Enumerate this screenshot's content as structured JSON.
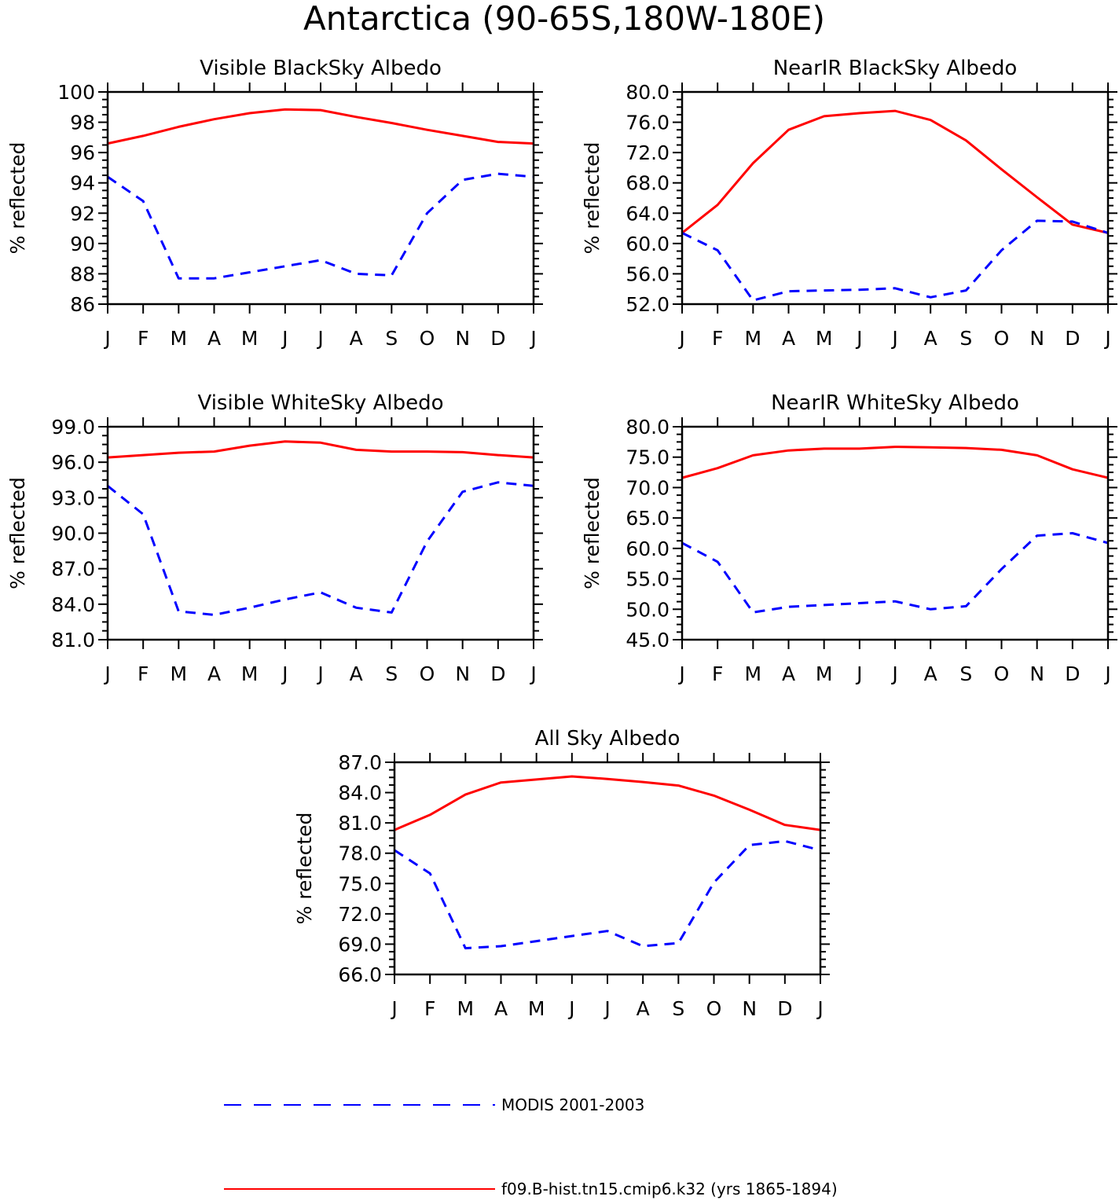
{
  "title": "Antarctica (90-65S,180W-180E)",
  "legend": {
    "modis_label": "MODIS 2001-2003",
    "model_label": "f09.B-hist.tn15.cmip6.k32 (yrs 1865-1894)",
    "modis_color": "#0000ff",
    "model_color": "#ff0000"
  },
  "chart_data": [
    {
      "type": "line",
      "title": "Visible BlackSky Albedo",
      "ylabel": "% reflected",
      "x": [
        "J",
        "F",
        "M",
        "A",
        "M",
        "J",
        "J",
        "A",
        "S",
        "O",
        "N",
        "D",
        "J"
      ],
      "ylim": [
        86,
        100
      ],
      "yticks": [
        "86",
        "88",
        "90",
        "92",
        "94",
        "96",
        "98",
        "100"
      ],
      "series": [
        {
          "name": "f09.B-hist.tn15.cmip6.k32 (yrs 1865-1894)",
          "color": "#ff0000",
          "dash": false,
          "values": [
            96.6,
            97.1,
            97.7,
            98.2,
            98.6,
            98.85,
            98.8,
            98.35,
            97.95,
            97.5,
            97.1,
            96.7,
            96.6
          ]
        },
        {
          "name": "MODIS 2001-2003",
          "color": "#0000ff",
          "dash": true,
          "values": [
            94.4,
            92.8,
            87.7,
            87.7,
            88.1,
            88.5,
            88.9,
            88.0,
            87.9,
            92.0,
            94.2,
            94.6,
            94.4
          ]
        }
      ]
    },
    {
      "type": "line",
      "title": "NearIR BlackSky Albedo",
      "ylabel": "% reflected",
      "x": [
        "J",
        "F",
        "M",
        "A",
        "M",
        "J",
        "J",
        "A",
        "S",
        "O",
        "N",
        "D",
        "J"
      ],
      "ylim": [
        52,
        80
      ],
      "yticks": [
        "52.0",
        "56.0",
        "60.0",
        "64.0",
        "68.0",
        "72.0",
        "76.0",
        "80.0"
      ],
      "series": [
        {
          "name": "f09.B-hist.tn15.cmip6.k32 (yrs 1865-1894)",
          "color": "#ff0000",
          "dash": false,
          "values": [
            61.4,
            65.1,
            70.6,
            75.0,
            76.8,
            77.2,
            77.5,
            76.3,
            73.6,
            69.8,
            66.1,
            62.5,
            61.4
          ]
        },
        {
          "name": "MODIS 2001-2003",
          "color": "#0000ff",
          "dash": true,
          "values": [
            61.4,
            59.1,
            52.5,
            53.7,
            53.8,
            53.9,
            54.1,
            52.9,
            53.8,
            59.1,
            63.0,
            62.9,
            61.4
          ]
        }
      ]
    },
    {
      "type": "line",
      "title": "Visible WhiteSky Albedo",
      "ylabel": "% reflected",
      "x": [
        "J",
        "F",
        "M",
        "A",
        "M",
        "J",
        "J",
        "A",
        "S",
        "O",
        "N",
        "D",
        "J"
      ],
      "ylim": [
        81,
        99
      ],
      "yticks": [
        "81.0",
        "84.0",
        "87.0",
        "90.0",
        "93.0",
        "96.0",
        "99.0"
      ],
      "series": [
        {
          "name": "f09.B-hist.tn15.cmip6.k32 (yrs 1865-1894)",
          "color": "#ff0000",
          "dash": false,
          "values": [
            96.4,
            96.6,
            96.8,
            96.9,
            97.4,
            97.75,
            97.65,
            97.05,
            96.9,
            96.9,
            96.85,
            96.6,
            96.4
          ]
        },
        {
          "name": "MODIS 2001-2003",
          "color": "#0000ff",
          "dash": true,
          "values": [
            94.0,
            91.6,
            83.4,
            83.1,
            83.7,
            84.4,
            85.0,
            83.7,
            83.3,
            89.3,
            93.5,
            94.3,
            94.0
          ]
        }
      ]
    },
    {
      "type": "line",
      "title": "NearIR WhiteSky Albedo",
      "ylabel": "% reflected",
      "x": [
        "J",
        "F",
        "M",
        "A",
        "M",
        "J",
        "J",
        "A",
        "S",
        "O",
        "N",
        "D",
        "J"
      ],
      "ylim": [
        45,
        80
      ],
      "yticks": [
        "45.0",
        "50.0",
        "55.0",
        "60.0",
        "65.0",
        "70.0",
        "75.0",
        "80.0"
      ],
      "series": [
        {
          "name": "f09.B-hist.tn15.cmip6.k32 (yrs 1865-1894)",
          "color": "#ff0000",
          "dash": false,
          "values": [
            71.6,
            73.2,
            75.3,
            76.1,
            76.4,
            76.4,
            76.7,
            76.6,
            76.5,
            76.2,
            75.3,
            73.0,
            71.6
          ]
        },
        {
          "name": "MODIS 2001-2003",
          "color": "#0000ff",
          "dash": true,
          "values": [
            60.9,
            57.8,
            49.5,
            50.4,
            50.7,
            51.0,
            51.3,
            50.0,
            50.5,
            56.6,
            62.1,
            62.5,
            60.9
          ]
        }
      ]
    },
    {
      "type": "line",
      "title": "All Sky Albedo",
      "ylabel": "% reflected",
      "x": [
        "J",
        "F",
        "M",
        "A",
        "M",
        "J",
        "J",
        "A",
        "S",
        "O",
        "N",
        "D",
        "J"
      ],
      "ylim": [
        66,
        87
      ],
      "yticks": [
        "66.0",
        "69.0",
        "72.0",
        "75.0",
        "78.0",
        "81.0",
        "84.0",
        "87.0"
      ],
      "series": [
        {
          "name": "f09.B-hist.tn15.cmip6.k32 (yrs 1865-1894)",
          "color": "#ff0000",
          "dash": false,
          "values": [
            80.3,
            81.8,
            83.8,
            85.0,
            85.3,
            85.6,
            85.35,
            85.05,
            84.7,
            83.7,
            82.3,
            80.8,
            80.3
          ]
        },
        {
          "name": "MODIS 2001-2003",
          "color": "#0000ff",
          "dash": true,
          "values": [
            78.3,
            76.0,
            68.6,
            68.8,
            69.3,
            69.8,
            70.3,
            68.8,
            69.1,
            75.1,
            78.8,
            79.2,
            78.3
          ]
        }
      ]
    }
  ]
}
